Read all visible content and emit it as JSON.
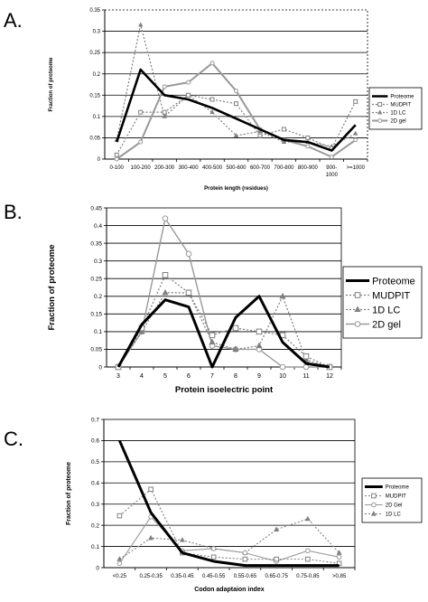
{
  "chart_data": [
    {
      "panel_label": "A.",
      "type": "line",
      "categories": [
        "0-100",
        "100-200",
        "200-300",
        "300-400",
        "400-500",
        "500-600",
        "600-700",
        "700-800",
        "800-900",
        "900-\n1000",
        ">=1000"
      ],
      "xlabel": "Protein length (residues)",
      "ylabel": "Fraction of proteome",
      "ylim": [
        0,
        0.35
      ],
      "yticks": [
        "0",
        "0.05",
        "0.1",
        "0.15",
        "0.2",
        "0.25",
        "0.3",
        "0.35"
      ],
      "grid": true,
      "legend_placement": "right",
      "series": [
        {
          "name": "Proteome",
          "values": [
            0.04,
            0.21,
            0.15,
            0.14,
            0.12,
            0.095,
            0.07,
            0.045,
            0.04,
            0.02,
            0.08
          ],
          "color": "#000000"
        },
        {
          "name": "MUDPIT",
          "values": [
            0.01,
            0.11,
            0.11,
            0.15,
            0.14,
            0.13,
            0.055,
            0.07,
            0.05,
            0.025,
            0.135
          ],
          "color": "#808080"
        },
        {
          "name": "1D LC",
          "values": [
            0.045,
            0.315,
            0.1,
            0.15,
            0.11,
            0.055,
            0.065,
            0.04,
            0.04,
            0.03,
            0.06
          ],
          "color": "#808080"
        },
        {
          "name": "2D gel",
          "values": [
            0.0,
            0.04,
            0.17,
            0.18,
            0.225,
            0.16,
            0.07,
            0.045,
            0.03,
            0.005,
            0.045
          ],
          "color": "#999999"
        }
      ]
    },
    {
      "panel_label": "B.",
      "type": "line",
      "categories": [
        "3",
        "4",
        "5",
        "6",
        "7",
        "8",
        "9",
        "10",
        "11",
        "12"
      ],
      "xlabel": "Protein isoelectric point",
      "ylabel": "Fraction of proteome",
      "ylim": [
        0,
        0.45
      ],
      "yticks": [
        "0",
        "0.05",
        "0.1",
        "0.15",
        "0.2",
        "0.25",
        "0.3",
        "0.35",
        "0.4",
        "0.45"
      ],
      "grid": true,
      "legend_placement": "right",
      "series": [
        {
          "name": "Proteome",
          "values": [
            0.0,
            0.12,
            0.19,
            0.17,
            0.0,
            0.14,
            0.2,
            0.07,
            0.01,
            0.0
          ],
          "color": "#000000"
        },
        {
          "name": "MUDPIT",
          "values": [
            0.0,
            0.11,
            0.26,
            0.21,
            0.09,
            0.11,
            0.1,
            0.09,
            0.03,
            0.0
          ],
          "color": "#808080"
        },
        {
          "name": "1D LC",
          "values": [
            0.0,
            0.1,
            0.21,
            0.21,
            0.07,
            0.05,
            0.06,
            0.2,
            0.02,
            0.0
          ],
          "color": "#808080"
        },
        {
          "name": "2D gel",
          "values": [
            0.0,
            0.1,
            0.42,
            0.32,
            0.06,
            0.05,
            0.05,
            0.0,
            0.0,
            0.0
          ],
          "color": "#999999"
        }
      ]
    },
    {
      "panel_label": "C.",
      "type": "line",
      "categories": [
        "<0.25",
        "0.25-0.35",
        "0.35-0.45",
        "0.45-0.55",
        "0.55-0.65",
        "0.65-0.75",
        "0.75-0.85",
        ">0.85"
      ],
      "xlabel": "Codon adaptaion index",
      "ylabel": "Fraction of proteome",
      "ylim": [
        0,
        0.7
      ],
      "yticks": [
        "0",
        "0.1",
        "0.2",
        "0.3",
        "0.4",
        "0.5",
        "0.6",
        "0.7"
      ],
      "grid": true,
      "legend_placement": "right",
      "series": [
        {
          "name": "Proteome",
          "values": [
            0.6,
            0.26,
            0.07,
            0.03,
            0.01,
            0.01,
            0.01,
            0.01
          ],
          "color": "#000000"
        },
        {
          "name": "MUDPIT",
          "values": [
            0.245,
            0.37,
            0.07,
            0.05,
            0.04,
            0.04,
            0.04,
            0.02
          ],
          "color": "#808080"
        },
        {
          "name": "2D Gel",
          "values": [
            0.02,
            0.24,
            0.08,
            0.09,
            0.07,
            0.03,
            0.08,
            0.05
          ],
          "color": "#999999"
        },
        {
          "name": "1D LC",
          "values": [
            0.04,
            0.14,
            0.13,
            0.09,
            0.07,
            0.18,
            0.23,
            0.07
          ],
          "color": "#808080"
        }
      ]
    }
  ]
}
